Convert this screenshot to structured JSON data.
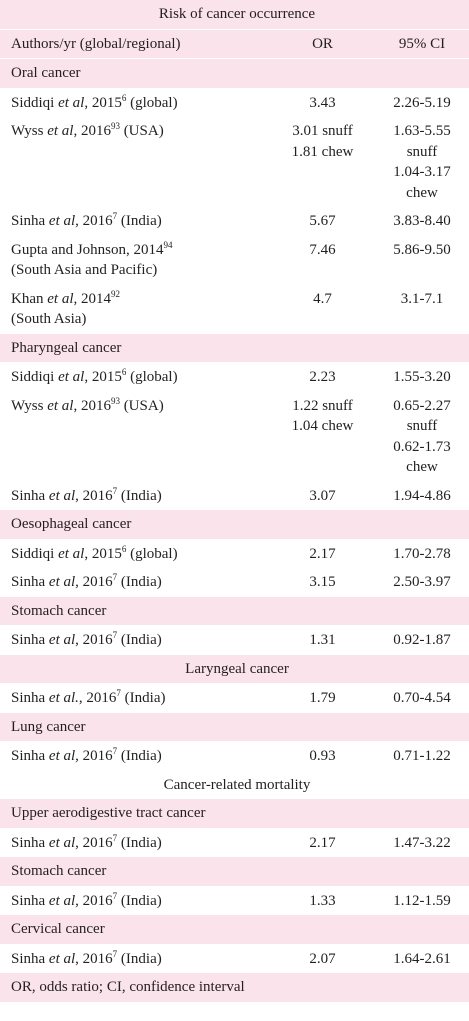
{
  "table": {
    "title": "Risk of cancer occurrence",
    "header": [
      "Authors/yr (global/regional)",
      "OR",
      "95% CI"
    ],
    "rows": [
      {
        "section": "Oral cancer"
      },
      {
        "author": {
          "pre": "Siddiqi ",
          "em": "et al",
          "mid": ", 2015",
          "sup": "6",
          "post": " (global)"
        },
        "or": [
          "3.43"
        ],
        "ci": [
          "2.26-5.19"
        ]
      },
      {
        "author": {
          "pre": "Wyss ",
          "em": "et al",
          "mid": ", 2016",
          "sup": "93",
          "post": " (USA)"
        },
        "or": [
          "3.01 snuff",
          "1.81 chew"
        ],
        "ci": [
          "1.63-5.55 snuff",
          "1.04-3.17 chew"
        ]
      },
      {
        "author": {
          "pre": "Sinha ",
          "em": "et al",
          "mid": ", 2016",
          "sup": "7",
          "post": " (India)"
        },
        "or": [
          "5.67"
        ],
        "ci": [
          "3.83-8.40"
        ]
      },
      {
        "author": {
          "pre": "Gupta and Johnson, 2014",
          "sup": "94",
          "region": "(South Asia and Pacific)"
        },
        "or": [
          "7.46"
        ],
        "ci": [
          "5.86-9.50"
        ]
      },
      {
        "author": {
          "pre": "Khan ",
          "em": "et al",
          "mid": ", 2014",
          "sup": "92",
          "region": "(South Asia)"
        },
        "or": [
          "4.7"
        ],
        "ci": [
          "3.1-7.1"
        ]
      },
      {
        "section": "Pharyngeal cancer"
      },
      {
        "author": {
          "pre": "Siddiqi ",
          "em": "et al",
          "mid": ", 2015",
          "sup": "6",
          "post": " (global)"
        },
        "or": [
          "2.23"
        ],
        "ci": [
          "1.55-3.20"
        ]
      },
      {
        "author": {
          "pre": "Wyss ",
          "em": "et al",
          "mid": ", 2016",
          "sup": "93",
          "post": " (USA)"
        },
        "or": [
          "1.22 snuff",
          "1.04 chew"
        ],
        "ci": [
          "0.65-2.27 snuff",
          "0.62-1.73 chew"
        ]
      },
      {
        "author": {
          "pre": "Sinha ",
          "em": "et al",
          "mid": ", 2016",
          "sup": "7",
          "post": " (India)"
        },
        "or": [
          "3.07"
        ],
        "ci": [
          "1.94-4.86"
        ]
      },
      {
        "section": "Oesophageal cancer"
      },
      {
        "author": {
          "pre": "Siddiqi ",
          "em": "et al",
          "mid": ", 2015",
          "sup": "6",
          "post": " (global)"
        },
        "or": [
          "2.17"
        ],
        "ci": [
          "1.70-2.78"
        ]
      },
      {
        "author": {
          "pre": "Sinha ",
          "em": "et al",
          "mid": ", 2016",
          "sup": "7",
          "post": " (India)"
        },
        "or": [
          "3.15"
        ],
        "ci": [
          "2.50-3.97"
        ]
      },
      {
        "section": "Stomach cancer"
      },
      {
        "author": {
          "pre": "Sinha ",
          "em": "et al",
          "mid": ", 2016",
          "sup": "7",
          "post": " (India)"
        },
        "or": [
          "1.31"
        ],
        "ci": [
          "0.92-1.87"
        ]
      },
      {
        "section": "Laryngeal cancer"
      },
      {
        "author": {
          "pre": "Sinha ",
          "em": "et al.",
          "mid": ", 2016",
          "sup": "7",
          "post": " (India)"
        },
        "or": [
          "1.79"
        ],
        "ci": [
          "0.70-4.54"
        ]
      },
      {
        "section": "Lung cancer"
      },
      {
        "author": {
          "pre": "Sinha ",
          "em": "et al",
          "mid": ", 2016",
          "sup": "7",
          "post": " (India)"
        },
        "or": [
          "0.93"
        ],
        "ci": [
          "0.71-1.22"
        ]
      },
      {
        "section": "Cancer-related mortality"
      },
      {
        "section": "Upper aerodigestive tract cancer"
      },
      {
        "author": {
          "pre": "Sinha ",
          "em": "et al",
          "mid": ", 2016",
          "sup": "7",
          "post": " (India)"
        },
        "or": [
          "2.17"
        ],
        "ci": [
          "1.47-3.22"
        ]
      },
      {
        "section": "Stomach cancer"
      },
      {
        "author": {
          "pre": "Sinha ",
          "em": "et al",
          "mid": ", 2016",
          "sup": "7",
          "post": " (India)"
        },
        "or": [
          "1.33"
        ],
        "ci": [
          "1.12-1.59"
        ]
      },
      {
        "section": "Cervical cancer"
      },
      {
        "author": {
          "pre": "Sinha ",
          "em": "et al",
          "mid": ", 2016",
          "sup": "7",
          "post": " (India)"
        },
        "or": [
          "2.07"
        ],
        "ci": [
          "1.64-2.61"
        ]
      }
    ],
    "footnote": "OR, odds ratio; CI, confidence interval"
  }
}
